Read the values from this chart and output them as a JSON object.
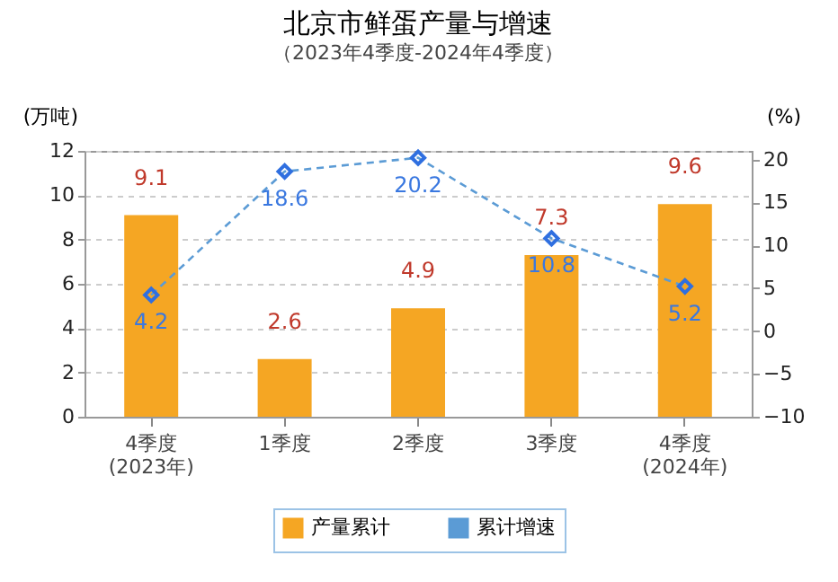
{
  "chart_data": {
    "type": "bar",
    "title": "北京市鲜蛋产量与增速",
    "subtitle": "（2023年4季度-2024年4季度）",
    "ylabel": "(万吨)",
    "y2label": "(%)",
    "categories": [
      "4季度\n(2023年)",
      "1季度",
      "2季度",
      "3季度",
      "4季度\n(2024年)"
    ],
    "series": [
      {
        "name": "产量累计",
        "color": "#f5a623",
        "values": [
          9.1,
          2.6,
          4.9,
          7.3,
          9.6
        ]
      },
      {
        "name": "累计增速",
        "type": "line",
        "axis": "y2",
        "color": "#5b9bd5",
        "marker": "diamond",
        "line_style": "dashed",
        "values": [
          4.2,
          18.6,
          20.2,
          10.8,
          5.2
        ]
      }
    ],
    "ylim": [
      0,
      12
    ],
    "yticks": [
      0,
      2,
      4,
      6,
      8,
      10,
      12
    ],
    "y2lim": [
      -10,
      21
    ],
    "y2ticks": [
      -10,
      -5,
      0,
      5,
      10,
      15,
      20
    ],
    "grid": "y",
    "legend": "bottom",
    "data_labels": true
  }
}
